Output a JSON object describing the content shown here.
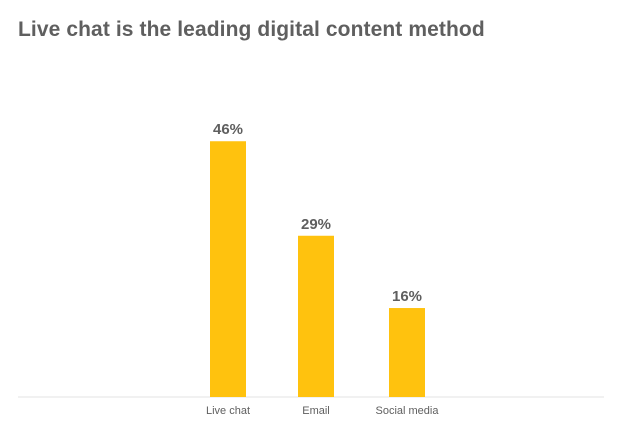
{
  "chart_data": {
    "type": "bar",
    "title": "Live chat is the leading digital content method",
    "categories": [
      "Live chat",
      "Email",
      "Social media"
    ],
    "values": [
      46,
      29,
      16
    ],
    "data_labels": [
      "46%",
      "29%",
      "16%"
    ],
    "unit": "%",
    "ylim": [
      0,
      50
    ],
    "grid": false,
    "legend": "none",
    "bar_color": "#FFC20E",
    "axis_color": "#e3e3e3",
    "text_color": "#5f5f5f"
  }
}
